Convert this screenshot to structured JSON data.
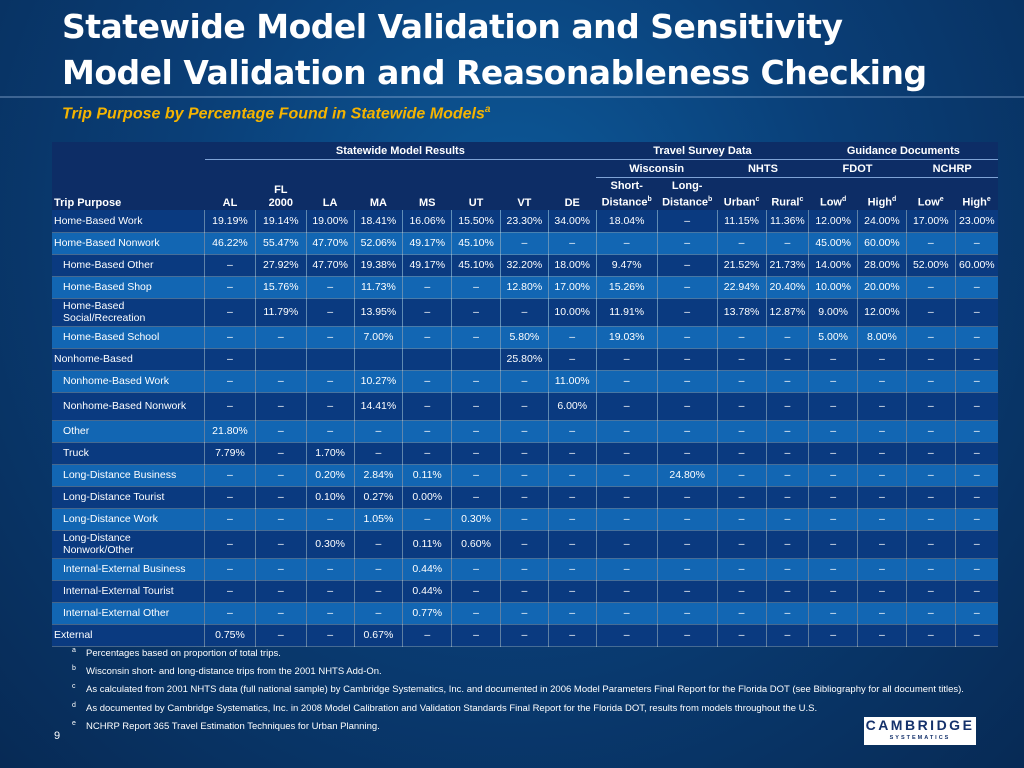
{
  "title_line1": "Statewide Model Validation and Sensitivity",
  "title_line2": "Model Validation and Reasonableness Checking",
  "subtitle": "Trip Purpose by Percentage Found in Statewide Models",
  "subtitle_mark": "a",
  "header": {
    "group_statewide": "Statewide Model Results",
    "group_travel": "Travel Survey Data",
    "group_guidance": "Guidance Documents",
    "sub_wisconsin": "Wisconsin",
    "sub_nhts": "NHTS",
    "sub_fdot": "FDOT",
    "sub_ncHRP": "NCHRP",
    "col_trip": "Trip Purpose",
    "col_al": "AL",
    "col_fl_1": "FL",
    "col_fl_2": "2000",
    "col_la": "LA",
    "col_ma": "MA",
    "col_ms": "MS",
    "col_ut": "UT",
    "col_vt": "VT",
    "col_de": "DE",
    "col_short_1": "Short-",
    "col_short_2": "Distance",
    "col_long_1": "Long-",
    "col_long_2": "Distance",
    "col_urban": "Urban",
    "col_rural": "Rural",
    "col_low1": "Low",
    "col_high1": "High",
    "col_low2": "Low",
    "col_high2": "High",
    "mark_b": "b",
    "mark_c": "c",
    "mark_d": "d",
    "mark_e": "e"
  },
  "rows": [
    {
      "label": "Home-Based Work",
      "indent": false,
      "tall": false,
      "values": [
        "19.19%",
        "19.14%",
        "19.00%",
        "18.41%",
        "16.06%",
        "15.50%",
        "23.30%",
        "34.00%",
        "18.04%",
        "–",
        "11.15%",
        "11.36%",
        "12.00%",
        "24.00%",
        "17.00%",
        "23.00%"
      ]
    },
    {
      "label": "Home-Based Nonwork",
      "indent": false,
      "tall": false,
      "values": [
        "46.22%",
        "55.47%",
        "47.70%",
        "52.06%",
        "49.17%",
        "45.10%",
        "–",
        "–",
        "–",
        "–",
        "–",
        "–",
        "45.00%",
        "60.00%",
        "–",
        "–"
      ]
    },
    {
      "label": "Home-Based Other",
      "indent": true,
      "tall": false,
      "values": [
        "–",
        "27.92%",
        "47.70%",
        "19.38%",
        "49.17%",
        "45.10%",
        "32.20%",
        "18.00%",
        "9.47%",
        "–",
        "21.52%",
        "21.73%",
        "14.00%",
        "28.00%",
        "52.00%",
        "60.00%"
      ]
    },
    {
      "label": "Home-Based Shop",
      "indent": true,
      "tall": false,
      "values": [
        "–",
        "15.76%",
        "–",
        "11.73%",
        "–",
        "–",
        "12.80%",
        "17.00%",
        "15.26%",
        "–",
        "22.94%",
        "20.40%",
        "10.00%",
        "20.00%",
        "–",
        "–"
      ]
    },
    {
      "label": "Home-Based Social/Recreation",
      "indent": true,
      "tall": true,
      "values": [
        "–",
        "11.79%",
        "–",
        "13.95%",
        "–",
        "–",
        "–",
        "10.00%",
        "11.91%",
        "–",
        "13.78%",
        "12.87%",
        "9.00%",
        "12.00%",
        "–",
        "–"
      ]
    },
    {
      "label": "Home-Based School",
      "indent": true,
      "tall": false,
      "values": [
        "–",
        "–",
        "–",
        "7.00%",
        "–",
        "–",
        "5.80%",
        "–",
        "19.03%",
        "–",
        "–",
        "–",
        "5.00%",
        "8.00%",
        "–",
        "–"
      ]
    },
    {
      "label": "Nonhome-Based",
      "indent": false,
      "tall": false,
      "values": [
        "–",
        "",
        "",
        "",
        "",
        "",
        "25.80%",
        "–",
        "–",
        "–",
        "–",
        "–",
        "–",
        "–",
        "–",
        "–"
      ]
    },
    {
      "label": "Nonhome-Based Work",
      "indent": true,
      "tall": false,
      "values": [
        "–",
        "–",
        "–",
        "10.27%",
        "–",
        "–",
        "–",
        "11.00%",
        "–",
        "–",
        "–",
        "–",
        "–",
        "–",
        "–",
        "–"
      ]
    },
    {
      "label": "Nonhome-Based Nonwork",
      "indent": true,
      "tall": true,
      "values": [
        "–",
        "–",
        "–",
        "14.41%",
        "–",
        "–",
        "–",
        "6.00%",
        "–",
        "–",
        "–",
        "–",
        "–",
        "–",
        "–",
        "–"
      ]
    },
    {
      "label": "Other",
      "indent": true,
      "tall": false,
      "values": [
        "21.80%",
        "–",
        "–",
        "–",
        "–",
        "–",
        "–",
        "–",
        "–",
        "–",
        "–",
        "–",
        "–",
        "–",
        "–",
        "–"
      ]
    },
    {
      "label": "Truck",
      "indent": true,
      "tall": false,
      "values": [
        "7.79%",
        "–",
        "1.70%",
        "–",
        "–",
        "–",
        "–",
        "–",
        "–",
        "–",
        "–",
        "–",
        "–",
        "–",
        "–",
        "–"
      ]
    },
    {
      "label": "Long-Distance Business",
      "indent": true,
      "tall": false,
      "values": [
        "–",
        "–",
        "0.20%",
        "2.84%",
        "0.11%",
        "–",
        "–",
        "–",
        "–",
        "24.80%",
        "–",
        "–",
        "–",
        "–",
        "–",
        "–"
      ]
    },
    {
      "label": "Long-Distance Tourist",
      "indent": true,
      "tall": false,
      "values": [
        "–",
        "–",
        "0.10%",
        "0.27%",
        "0.00%",
        "–",
        "–",
        "–",
        "–",
        "–",
        "–",
        "–",
        "–",
        "–",
        "–",
        "–"
      ]
    },
    {
      "label": "Long-Distance Work",
      "indent": true,
      "tall": false,
      "values": [
        "–",
        "–",
        "–",
        "1.05%",
        "–",
        "0.30%",
        "–",
        "–",
        "–",
        "–",
        "–",
        "–",
        "–",
        "–",
        "–",
        "–"
      ]
    },
    {
      "label": "Long-Distance Nonwork/Other",
      "indent": true,
      "tall": true,
      "values": [
        "–",
        "–",
        "0.30%",
        "–",
        "0.11%",
        "0.60%",
        "–",
        "–",
        "–",
        "–",
        "–",
        "–",
        "–",
        "–",
        "–",
        "–"
      ]
    },
    {
      "label": "Internal-External Business",
      "indent": true,
      "tall": false,
      "values": [
        "–",
        "–",
        "–",
        "–",
        "0.44%",
        "–",
        "–",
        "–",
        "–",
        "–",
        "–",
        "–",
        "–",
        "–",
        "–",
        "–"
      ]
    },
    {
      "label": "Internal-External Tourist",
      "indent": true,
      "tall": false,
      "values": [
        "–",
        "–",
        "–",
        "–",
        "0.44%",
        "–",
        "–",
        "–",
        "–",
        "–",
        "–",
        "–",
        "–",
        "–",
        "–",
        "–"
      ]
    },
    {
      "label": "Internal-External Other",
      "indent": true,
      "tall": false,
      "values": [
        "–",
        "–",
        "–",
        "–",
        "0.77%",
        "–",
        "–",
        "–",
        "–",
        "–",
        "–",
        "–",
        "–",
        "–",
        "–",
        "–"
      ]
    },
    {
      "label": "External",
      "indent": false,
      "tall": false,
      "values": [
        "0.75%",
        "–",
        "–",
        "0.67%",
        "–",
        "–",
        "–",
        "–",
        "–",
        "–",
        "–",
        "–",
        "–",
        "–",
        "–",
        "–"
      ]
    }
  ],
  "footnotes": [
    {
      "mark": "a",
      "text": "Percentages based on proportion of total trips."
    },
    {
      "mark": "b",
      "text": "Wisconsin short- and long-distance trips from the 2001 NHTS Add-On."
    },
    {
      "mark": "c",
      "text": "As calculated from 2001 NHTS data (full national sample) by Cambridge Systematics, Inc. and documented in 2006 Model Parameters Final Report for the Florida DOT (see Bibliography for all document titles)."
    },
    {
      "mark": "d",
      "text": "As documented by Cambridge Systematics, Inc. in 2008 Model Calibration and Validation Standards Final Report for the Florida DOT, results from models throughout the U.S."
    },
    {
      "mark": "e",
      "text": "NCHRP Report 365 Travel Estimation Techniques for Urban Planning."
    }
  ],
  "page_number": "9",
  "logo_main": "CAMBRIDGE",
  "logo_sub": "SYSTEMATICS"
}
